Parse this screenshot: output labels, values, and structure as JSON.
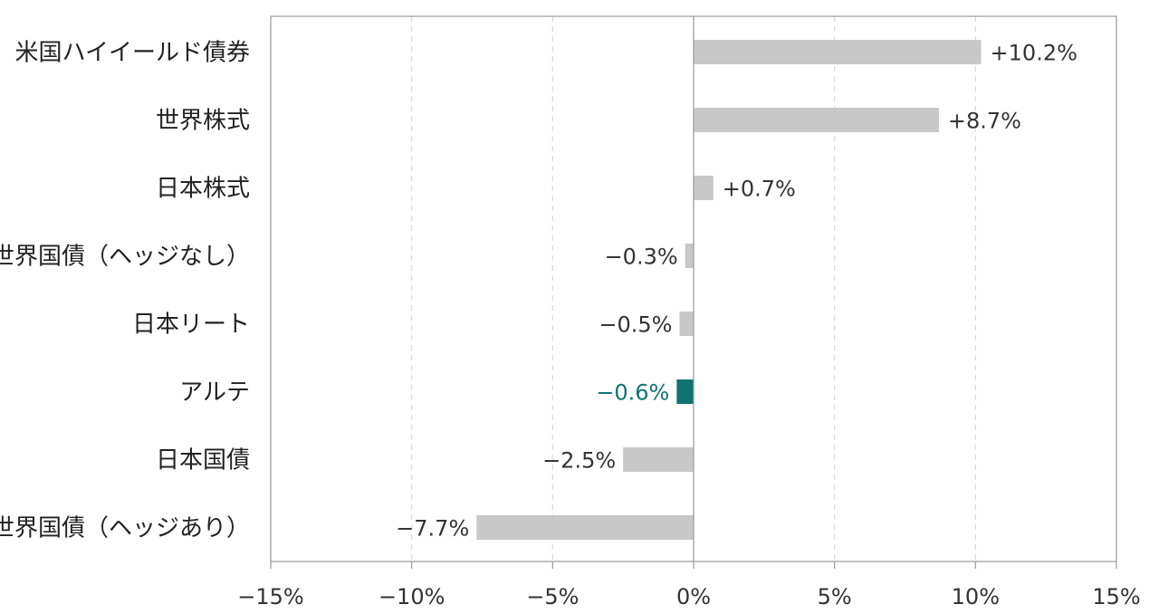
{
  "chart_data": {
    "type": "bar",
    "orientation": "horizontal",
    "categories": [
      "米国ハイイールド債券",
      "世界株式",
      "日本株式",
      "世界国債（ヘッジなし）",
      "日本リート",
      "アルテ",
      "日本国債",
      "世界国債（ヘッジあり）"
    ],
    "values": [
      10.2,
      8.7,
      0.7,
      -0.3,
      -0.5,
      -0.6,
      -2.5,
      -7.7
    ],
    "value_labels": [
      "+10.2%",
      "+8.7%",
      "+0.7%",
      "−0.3%",
      "−0.5%",
      "−0.6%",
      "−2.5%",
      "−7.7%"
    ],
    "highlight_index": 5,
    "xlim": [
      -15,
      15
    ],
    "x_ticks": [
      -15,
      -10,
      -5,
      0,
      5,
      10,
      15
    ],
    "x_tick_labels": [
      "−15%",
      "−10%",
      "−5%",
      "0%",
      "5%",
      "10%",
      "15%"
    ],
    "grid": "vertical-dashed",
    "colors": {
      "bar": "#c8c8c8",
      "highlight": "#0e7470",
      "highlight_text": "#0e7470",
      "grid": "#d9d9d9",
      "axis": "#9a9a9a"
    }
  }
}
